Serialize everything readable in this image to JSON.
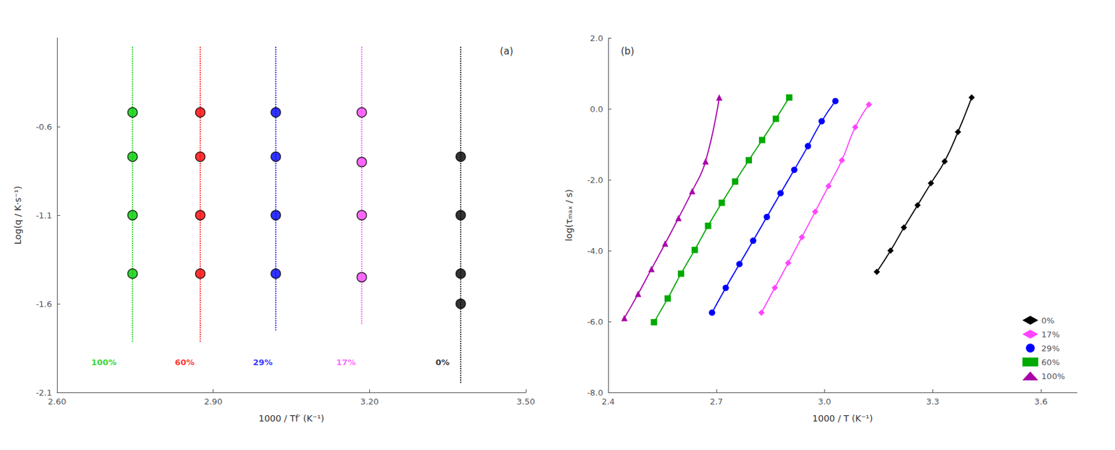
{
  "chart_data": [
    {
      "type": "scatter",
      "title": "(a)",
      "x_label": "1000 / Tf′ (K⁻¹)",
      "y_label": "Log(q / K·s⁻¹)",
      "marker": "circle",
      "series": [
        {
          "color": "#00CC00",
          "x": 2.745,
          "values": [
            -0.52,
            -0.77,
            -1.1,
            -1.43
          ],
          "line_y": [
            -0.15,
            -1.82
          ],
          "line_style": "dotted"
        },
        {
          "color": "#FF0000",
          "x": 2.875,
          "values": [
            -0.52,
            -0.77,
            -1.1,
            -1.43
          ],
          "line_y": [
            -0.15,
            -1.82
          ],
          "line_style": "dotted"
        },
        {
          "color": "#0000FF",
          "x": 3.02,
          "values": [
            -0.52,
            -0.77,
            -1.1,
            -1.43
          ],
          "line_y": [
            -0.15,
            -1.75
          ],
          "line_style": "dotted"
        },
        {
          "color": "#FF44FF",
          "x": 3.185,
          "values": [
            -0.52,
            -0.8,
            -1.1,
            -1.45
          ],
          "line_y": [
            -0.15,
            -1.72
          ],
          "line_style": "dotted"
        },
        {
          "color": "#000000",
          "x": 3.375,
          "values": [
            -0.77,
            -1.1,
            -1.43,
            -1.6
          ],
          "line_y": [
            -0.15,
            -2.05
          ],
          "line_style": "dotted"
        }
      ],
      "annotations": [
        {
          "text": "100%",
          "x": 2.69,
          "y": -1.93,
          "color": "#00CC00"
        },
        {
          "text": "60%",
          "x": 2.845,
          "y": -1.93,
          "color": "#FF0000"
        },
        {
          "text": "29%",
          "x": 2.995,
          "y": -1.93,
          "color": "#0000FF"
        },
        {
          "text": "17%",
          "x": 3.155,
          "y": -1.93,
          "color": "#FF44FF"
        },
        {
          "text": "0%",
          "x": 3.34,
          "y": -1.93,
          "color": "#000000"
        }
      ],
      "xlim": [
        2.6,
        3.5
      ],
      "ylim": [
        -2.1,
        -0.1
      ],
      "xticks": [
        {
          "value": 2.6,
          "label": "2.60"
        },
        {
          "value": 2.9,
          "label": "2.90"
        },
        {
          "value": 3.2,
          "label": "3.20"
        },
        {
          "value": 3.5,
          "label": "3.50"
        }
      ],
      "yticks": [
        -2.1,
        -1.6,
        -1.1,
        -0.6
      ],
      "grid": false
    },
    {
      "type": "line",
      "title": "(b)",
      "x_label": "1000 / T (K⁻¹)",
      "y_label": "log(τₘₐₓ / s)",
      "series": [
        {
          "name": "0%",
          "color": "#000000",
          "marker": "diamond",
          "x": [
            3.145,
            3.183,
            3.22,
            3.258,
            3.295,
            3.333,
            3.37,
            3.408
          ],
          "values": [
            -4.6,
            -4.0,
            -3.35,
            -2.72,
            -2.1,
            -1.48,
            -0.65,
            0.32
          ]
        },
        {
          "name": "17%",
          "color": "#FF44FF",
          "marker": "diamond",
          "x": [
            2.825,
            2.862,
            2.899,
            2.937,
            2.974,
            3.011,
            3.048,
            3.085,
            3.123
          ],
          "values": [
            -5.75,
            -5.05,
            -4.35,
            -3.62,
            -2.9,
            -2.18,
            -1.45,
            -0.52,
            0.12
          ]
        },
        {
          "name": "29%",
          "color": "#0000FF",
          "marker": "circle",
          "x": [
            2.688,
            2.726,
            2.764,
            2.802,
            2.84,
            2.878,
            2.916,
            2.954,
            2.992,
            3.03
          ],
          "values": [
            -5.75,
            -5.05,
            -4.38,
            -3.72,
            -3.05,
            -2.38,
            -1.72,
            -1.05,
            -0.35,
            0.22
          ]
        },
        {
          "name": "60%",
          "color": "#00AA00",
          "marker": "square",
          "x": [
            2.527,
            2.565,
            2.602,
            2.64,
            2.677,
            2.715,
            2.752,
            2.79,
            2.827,
            2.865,
            2.902
          ],
          "values": [
            -6.02,
            -5.35,
            -4.65,
            -3.98,
            -3.3,
            -2.65,
            -2.05,
            -1.45,
            -0.88,
            -0.28,
            0.32
          ]
        },
        {
          "name": "100%",
          "color": "#AA00AA",
          "marker": "triangle",
          "x": [
            2.445,
            2.483,
            2.52,
            2.558,
            2.595,
            2.633,
            2.67,
            2.708
          ],
          "values": [
            -5.9,
            -5.22,
            -4.52,
            -3.8,
            -3.08,
            -2.32,
            -1.48,
            0.32
          ]
        }
      ],
      "xlim": [
        2.4,
        3.7
      ],
      "ylim": [
        -8.0,
        2.0
      ],
      "xticks": [
        2.4,
        2.7,
        {
          "value": 3.0,
          "label": "3.0"
        },
        3.3,
        3.6
      ],
      "yticks": [
        {
          "value": -8.0,
          "label": "-8.0"
        },
        {
          "value": -6.0,
          "label": "-6.0"
        },
        {
          "value": -4.0,
          "label": "-4.0"
        },
        {
          "value": -2.0,
          "label": "-2.0"
        },
        {
          "value": 0.0,
          "label": "0.0"
        },
        {
          "value": 2.0,
          "label": "2.0"
        }
      ],
      "legend": "lower right",
      "grid": false
    }
  ]
}
